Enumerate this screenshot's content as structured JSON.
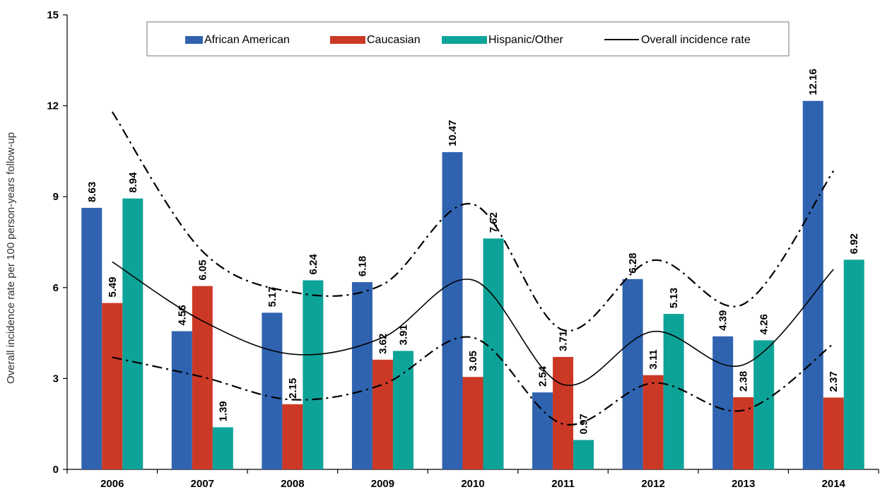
{
  "chart_data": {
    "type": "bar",
    "categories": [
      "2006",
      "2007",
      "2008",
      "2009",
      "2010",
      "2011",
      "2012",
      "2013",
      "2014"
    ],
    "ylabel": "Overall incidence rate per 100 person-years follow-up",
    "xlabel": "",
    "ylim": [
      0,
      15
    ],
    "yticks": [
      0,
      3,
      6,
      9,
      12,
      15
    ],
    "series": [
      {
        "name": "African American",
        "color": "#2f63b0",
        "values": [
          8.63,
          4.56,
          5.17,
          6.18,
          10.47,
          2.54,
          6.28,
          4.39,
          12.16
        ],
        "labels": [
          "8.63",
          "4.56",
          "5.17",
          "6.18",
          "10.47",
          "2.54",
          "6.28",
          "4.39",
          "12.16"
        ]
      },
      {
        "name": "Caucasian",
        "color": "#cc3826",
        "values": [
          5.49,
          6.05,
          2.15,
          3.62,
          3.05,
          3.71,
          3.11,
          2.38,
          2.37
        ],
        "labels": [
          "5.49",
          "6.05",
          "2.15",
          "3.62",
          "3.05",
          "3.71",
          "3.11",
          "2.38",
          "2.37"
        ]
      },
      {
        "name": "Hispanic/Other",
        "color": "#0ea399",
        "values": [
          8.94,
          1.39,
          6.24,
          3.91,
          7.62,
          0.97,
          5.13,
          4.26,
          6.92
        ],
        "labels": [
          "8.94",
          "1.39",
          "6.24",
          "3.91",
          "7.62",
          "0.97",
          "5.13",
          "4.26",
          "6.92"
        ]
      }
    ],
    "lines": [
      {
        "name": "Overall incidence rate",
        "style": "solid",
        "values": [
          6.85,
          4.9,
          3.8,
          4.35,
          6.25,
          2.8,
          4.55,
          3.45,
          6.6
        ]
      },
      {
        "name": "",
        "style": "dashdot",
        "values": [
          11.8,
          7.2,
          5.85,
          6.1,
          8.75,
          4.6,
          6.9,
          5.45,
          9.85
        ]
      },
      {
        "name": "",
        "style": "dashdot",
        "values": [
          3.7,
          3.05,
          2.3,
          2.8,
          4.35,
          1.5,
          2.85,
          1.95,
          4.15
        ]
      }
    ],
    "legend": [
      "African American",
      "Caucasian",
      "Hispanic/Other",
      "Overall incidence rate"
    ],
    "legend_position": "top-center",
    "grid": false
  }
}
